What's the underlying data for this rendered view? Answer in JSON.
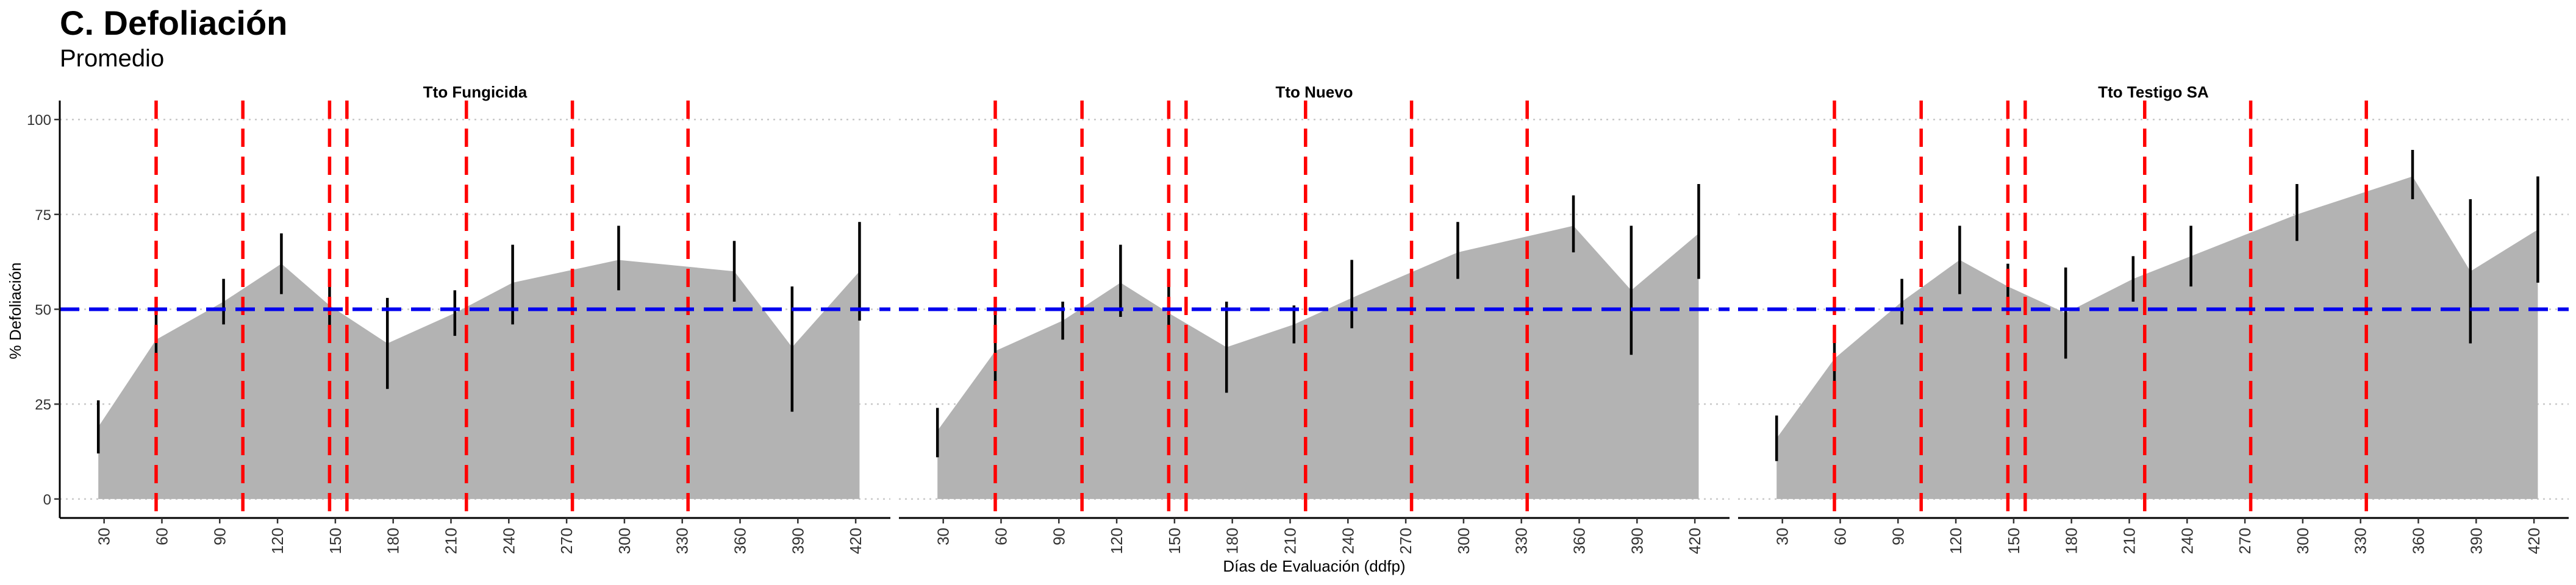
{
  "figure": {
    "title": "C. Defoliación",
    "subtitle": "Promedio"
  },
  "chart_data": {
    "type": "area",
    "xlabel": "Días de Evaluación (ddfp)",
    "ylabel": "% Defoliación",
    "xticks": [
      30,
      60,
      90,
      120,
      150,
      180,
      210,
      240,
      270,
      300,
      330,
      360,
      390,
      420
    ],
    "yticks": [
      0,
      25,
      50,
      75,
      100
    ],
    "xlim": [
      7,
      438
    ],
    "ylim": [
      -5,
      105
    ],
    "grid": "horizontal dotted",
    "colors": {
      "area": "#b3b3b3",
      "threshold": "#0000ee",
      "vlines": "#ff0000",
      "errorbars": "#000000"
    },
    "threshold": 50,
    "vlines": [
      57,
      102,
      147,
      156,
      218,
      273,
      333
    ],
    "panels": [
      {
        "name": "Tto Fungicida",
        "x": [
          27,
          57,
          92,
          122,
          147,
          177,
          212,
          242,
          297,
          357,
          387,
          422
        ],
        "y": [
          19,
          42,
          52,
          62,
          51,
          41,
          49,
          57,
          63,
          60,
          40,
          60
        ],
        "lower": [
          12,
          35,
          46,
          54,
          44,
          29,
          43,
          46,
          55,
          52,
          23,
          47
        ],
        "upper": [
          26,
          49,
          58,
          70,
          57,
          53,
          55,
          67,
          72,
          68,
          56,
          73
        ]
      },
      {
        "name": "Tto Nuevo",
        "x": [
          27,
          57,
          92,
          122,
          147,
          177,
          212,
          242,
          297,
          357,
          387,
          422
        ],
        "y": [
          18,
          39,
          47,
          57,
          49,
          40,
          46,
          53,
          65,
          72,
          55,
          70
        ],
        "lower": [
          11,
          30,
          42,
          48,
          42,
          28,
          41,
          45,
          58,
          65,
          38,
          58
        ],
        "upper": [
          24,
          49,
          52,
          67,
          56,
          52,
          51,
          63,
          73,
          80,
          72,
          83
        ]
      },
      {
        "name": "Tto Testigo SA",
        "x": [
          27,
          57,
          92,
          122,
          147,
          177,
          212,
          242,
          297,
          357,
          387,
          422
        ],
        "y": [
          16,
          37,
          52,
          63,
          56,
          49,
          58,
          64,
          75,
          85,
          60,
          71
        ],
        "lower": [
          10,
          29,
          46,
          54,
          50,
          37,
          52,
          56,
          68,
          79,
          41,
          57
        ],
        "upper": [
          22,
          45,
          58,
          72,
          62,
          61,
          64,
          72,
          83,
          92,
          79,
          85
        ]
      }
    ]
  }
}
